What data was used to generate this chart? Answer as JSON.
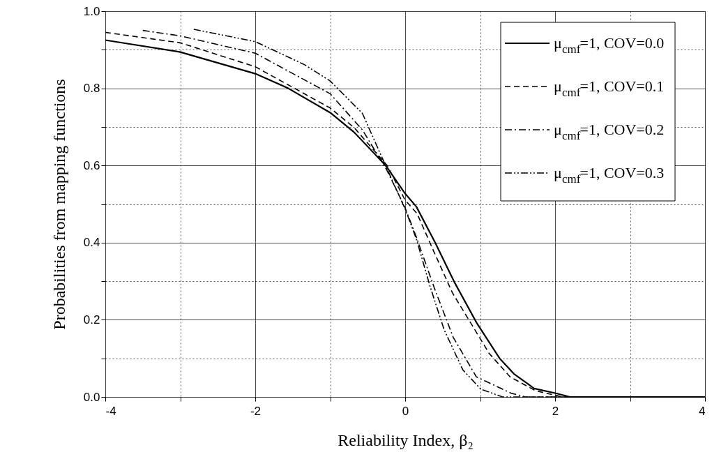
{
  "chart_data": {
    "type": "line",
    "xlabel": "Reliability Index, β₂",
    "ylabel": "Probabilities from mapping functions",
    "xlim": [
      -4,
      4
    ],
    "ylim": [
      0,
      1
    ],
    "xticks": [
      -4,
      {
        "value": -3,
        "label": null
      },
      -2,
      {
        "value": -1,
        "label": null
      },
      0,
      {
        "value": 1,
        "label": null
      },
      2,
      {
        "value": 3,
        "label": null
      },
      4
    ],
    "yticks": [
      {
        "value": 0,
        "label": "0.0"
      },
      {
        "value": 0.1,
        "label": null
      },
      0.2,
      {
        "value": 0.3,
        "label": null
      },
      0.4,
      {
        "value": 0.5,
        "label": null
      },
      0.6,
      {
        "value": 0.7,
        "label": null
      },
      0.8,
      {
        "value": 0.9,
        "label": null
      },
      {
        "value": 1,
        "label": "1.0"
      }
    ],
    "grid": true,
    "legend": "top right",
    "series": [
      {
        "name": "μ$_{cmf}$=1, COV=0.0",
        "color": "#000000",
        "line_style": "solid",
        "x": [
          -4,
          -3,
          -2,
          -1.56,
          -1,
          -0.68,
          -0.26,
          0,
          0.15,
          0.4,
          0.65,
          0.96,
          1.26,
          1.45,
          1.72,
          2,
          2.2,
          4
        ],
        "values": [
          0.925,
          0.894,
          0.838,
          0.8,
          0.737,
          0.686,
          0.6,
          0.527,
          0.493,
          0.4,
          0.3,
          0.19,
          0.1,
          0.06,
          0.022,
          0.01,
          0,
          0
        ]
      },
      {
        "name": "μ$_{cmf}$=1, COV=0.1",
        "color": "#000000",
        "line_style": "dashed",
        "x": [
          -4,
          -3,
          -2,
          -1,
          -0.68,
          -0.24,
          0,
          0.16,
          0.38,
          0.63,
          0.88,
          1.12,
          1.4,
          1.74,
          2.1,
          4
        ],
        "values": [
          0.945,
          0.918,
          0.856,
          0.749,
          0.698,
          0.6,
          0.51,
          0.475,
          0.378,
          0.27,
          0.19,
          0.113,
          0.052,
          0.016,
          0,
          0
        ]
      },
      {
        "name": "μ$_{cmf}$=1, COV=0.2",
        "color": "#000000",
        "line_style": "dashdot",
        "x": [
          -3.5,
          -3,
          -2,
          -1,
          -0.57,
          -0.25,
          0,
          0.15,
          0.39,
          0.64,
          0.95,
          1.41,
          1.6,
          4
        ],
        "values": [
          0.95,
          0.936,
          0.891,
          0.786,
          0.692,
          0.59,
          0.49,
          0.414,
          0.282,
          0.155,
          0.052,
          0.01,
          0,
          0
        ]
      },
      {
        "name": "μ$_{cmf}$=1, COV=0.3",
        "color": "#000000",
        "line_style": "dashdotdot",
        "x": [
          -2.82,
          -2,
          -1.34,
          -1,
          -0.57,
          -0.25,
          0,
          0.15,
          0.33,
          0.52,
          0.77,
          1.01,
          1.3,
          4
        ],
        "values": [
          0.953,
          0.921,
          0.861,
          0.819,
          0.735,
          0.595,
          0.487,
          0.409,
          0.288,
          0.174,
          0.07,
          0.02,
          0,
          0
        ]
      }
    ]
  }
}
